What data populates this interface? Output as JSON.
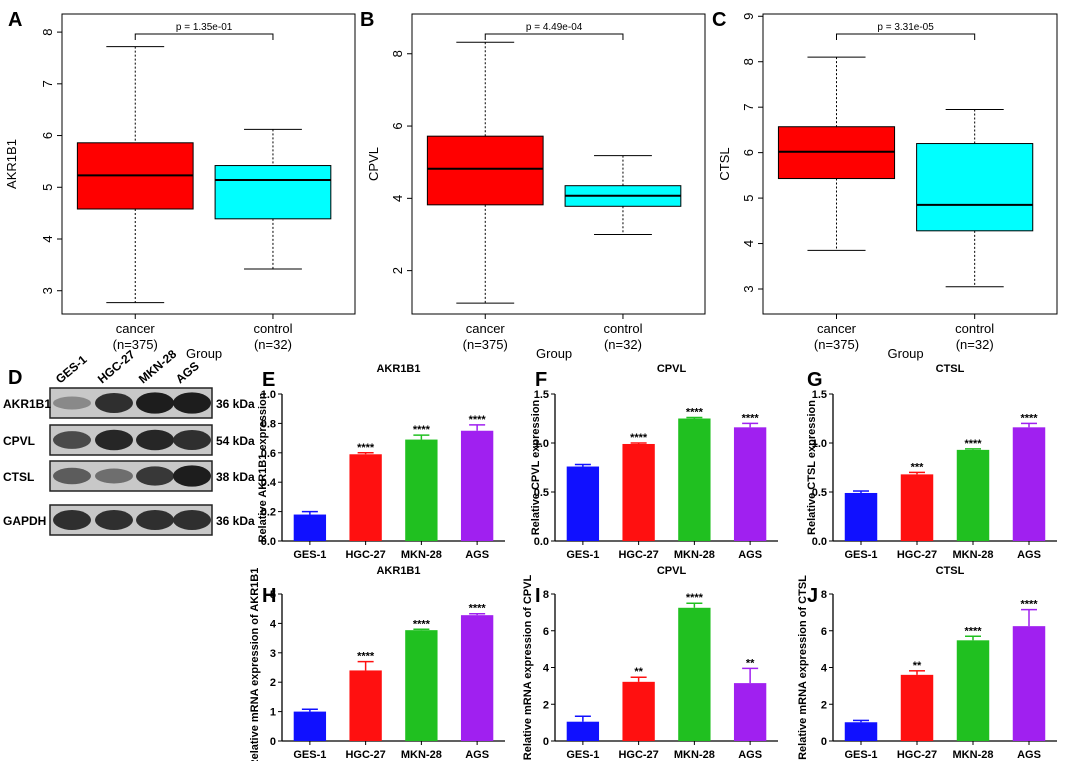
{
  "panel_letters": [
    "A",
    "B",
    "C",
    "D",
    "E",
    "F",
    "G",
    "H",
    "I",
    "J"
  ],
  "chart_data": [
    {
      "panel": "A",
      "type": "boxplot",
      "ylabel": "AKR1B1",
      "xlabel": "Group",
      "pvalue": "p = 1.35e-01",
      "ylim": [
        2.55,
        8.35
      ],
      "yticks": [
        3,
        4,
        5,
        6,
        7,
        8
      ],
      "groups": [
        {
          "name": "cancer",
          "n": "(n=375)",
          "color": "#ff0000",
          "min": 2.77,
          "q1": 4.58,
          "median": 5.23,
          "q3": 5.86,
          "max": 7.72
        },
        {
          "name": "control",
          "n": "(n=32)",
          "color": "#00ffff",
          "min": 3.42,
          "q1": 4.39,
          "median": 5.14,
          "q3": 5.42,
          "max": 6.12
        }
      ]
    },
    {
      "panel": "B",
      "type": "boxplot",
      "ylabel": "CPVL",
      "xlabel": "Group",
      "pvalue": "p = 4.49e-04",
      "ylim": [
        0.8,
        9.1
      ],
      "yticks": [
        2,
        4,
        6,
        8
      ],
      "groups": [
        {
          "name": "cancer",
          "n": "(n=375)",
          "color": "#ff0000",
          "min": 1.1,
          "q1": 3.82,
          "median": 4.82,
          "q3": 5.72,
          "max": 8.32
        },
        {
          "name": "control",
          "n": "(n=32)",
          "color": "#00ffff",
          "min": 3.0,
          "q1": 3.78,
          "median": 4.07,
          "q3": 4.35,
          "max": 5.18
        }
      ]
    },
    {
      "panel": "C",
      "type": "boxplot",
      "ylabel": "CTSL",
      "xlabel": "Group",
      "pvalue": "p = 3.31e-05",
      "ylim": [
        2.45,
        9.05
      ],
      "yticks": [
        3,
        4,
        5,
        6,
        7,
        8,
        9
      ],
      "groups": [
        {
          "name": "cancer",
          "n": "(n=375)",
          "color": "#ff0000",
          "min": 3.85,
          "q1": 5.43,
          "median": 6.02,
          "q3": 6.57,
          "max": 8.1
        },
        {
          "name": "control",
          "n": "(n=32)",
          "color": "#00ffff",
          "min": 3.05,
          "q1": 4.28,
          "median": 4.85,
          "q3": 6.2,
          "max": 6.95
        }
      ]
    },
    {
      "panel": "E",
      "type": "bar",
      "title": "AKR1B1",
      "ylabel": "Relative AKR1B1 expression",
      "categories": [
        "GES-1",
        "HGC-27",
        "MKN-28",
        "AGS"
      ],
      "values": [
        0.18,
        0.59,
        0.69,
        0.75
      ],
      "errors": [
        0.02,
        0.01,
        0.03,
        0.04
      ],
      "significance": [
        "",
        "****",
        "****",
        "****"
      ],
      "colors": [
        "#1010ff",
        "#ff1010",
        "#20c020",
        "#a020f0"
      ],
      "ylim": [
        0,
        1.0
      ],
      "yticks": [
        "0.0",
        "0.2",
        "0.4",
        "0.6",
        "0.8",
        "1.0"
      ]
    },
    {
      "panel": "F",
      "type": "bar",
      "title": "CPVL",
      "ylabel": "Relative CPVL expression",
      "categories": [
        "GES-1",
        "HGC-27",
        "MKN-28",
        "AGS"
      ],
      "values": [
        0.76,
        0.99,
        1.25,
        1.16
      ],
      "errors": [
        0.02,
        0.01,
        0.01,
        0.04
      ],
      "significance": [
        "",
        "****",
        "****",
        "****"
      ],
      "colors": [
        "#1010ff",
        "#ff1010",
        "#20c020",
        "#a020f0"
      ],
      "ylim": [
        0,
        1.5
      ],
      "yticks": [
        "0.0",
        "0.5",
        "1.0",
        "1.5"
      ]
    },
    {
      "panel": "G",
      "type": "bar",
      "title": "CTSL",
      "ylabel": "Relative CTSL expression",
      "categories": [
        "GES-1",
        "HGC-27",
        "MKN-28",
        "AGS"
      ],
      "values": [
        0.49,
        0.68,
        0.93,
        1.16
      ],
      "errors": [
        0.02,
        0.02,
        0.01,
        0.04
      ],
      "significance": [
        "",
        "***",
        "****",
        "****"
      ],
      "colors": [
        "#1010ff",
        "#ff1010",
        "#20c020",
        "#a020f0"
      ],
      "ylim": [
        0,
        1.5
      ],
      "yticks": [
        "0.0",
        "0.5",
        "1.0",
        "1.5"
      ]
    },
    {
      "panel": "H",
      "type": "bar",
      "title": "AKR1B1",
      "ylabel": "Relative mRNA expression of AKR1B1",
      "categories": [
        "GES-1",
        "HGC-27",
        "MKN-28",
        "AGS"
      ],
      "values": [
        1.0,
        2.4,
        3.77,
        4.28
      ],
      "errors": [
        0.08,
        0.3,
        0.03,
        0.05
      ],
      "significance": [
        "",
        "****",
        "****",
        "****"
      ],
      "colors": [
        "#1010ff",
        "#ff1010",
        "#20c020",
        "#a020f0"
      ],
      "ylim": [
        0,
        5
      ],
      "yticks": [
        "0",
        "1",
        "2",
        "3",
        "4",
        "5"
      ]
    },
    {
      "panel": "I",
      "type": "bar",
      "title": "CPVL",
      "ylabel": "Relative mRNA expression of CPVL",
      "categories": [
        "GES-1",
        "HGC-27",
        "MKN-28",
        "AGS"
      ],
      "values": [
        1.05,
        3.22,
        7.25,
        3.15
      ],
      "errors": [
        0.3,
        0.25,
        0.25,
        0.8
      ],
      "significance": [
        "",
        "**",
        "****",
        "**"
      ],
      "colors": [
        "#1010ff",
        "#ff1010",
        "#20c020",
        "#a020f0"
      ],
      "ylim": [
        0,
        8
      ],
      "yticks": [
        "0",
        "2",
        "4",
        "6",
        "8"
      ]
    },
    {
      "panel": "J",
      "type": "bar",
      "title": "CTSL",
      "ylabel": "Relative mRNA expression of CTSL",
      "categories": [
        "GES-1",
        "HGC-27",
        "MKN-28",
        "AGS"
      ],
      "values": [
        1.02,
        3.6,
        5.48,
        6.25
      ],
      "errors": [
        0.1,
        0.22,
        0.22,
        0.9
      ],
      "significance": [
        "",
        "**",
        "****",
        "****"
      ],
      "colors": [
        "#1010ff",
        "#ff1010",
        "#20c020",
        "#a020f0"
      ],
      "ylim": [
        0,
        8
      ],
      "yticks": [
        "0",
        "2",
        "4",
        "6",
        "8"
      ]
    }
  ],
  "western_blot": {
    "panel": "D",
    "lanes": [
      "GES-1",
      "HGC-27",
      "MKN-28",
      "AGS"
    ],
    "rows": [
      {
        "protein": "AKR1B1",
        "size": "36 kDa",
        "intensity": [
          0.35,
          0.85,
          0.95,
          0.95
        ]
      },
      {
        "protein": "CPVL",
        "size": "54 kDa",
        "intensity": [
          0.7,
          0.9,
          0.9,
          0.85
        ]
      },
      {
        "protein": "CTSL",
        "size": "38 kDa",
        "intensity": [
          0.6,
          0.5,
          0.8,
          0.95
        ]
      },
      {
        "protein": "GAPDH",
        "size": "36 kDa",
        "intensity": [
          0.85,
          0.85,
          0.85,
          0.85
        ]
      }
    ]
  }
}
